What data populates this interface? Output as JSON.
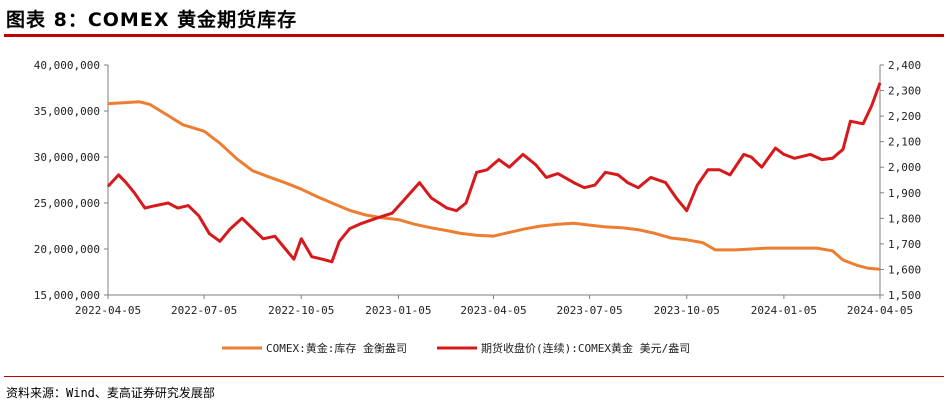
{
  "title": "图表 8：COMEX 黄金期货库存",
  "source": "资料来源：Wind、麦高证券研究发展部",
  "colors": {
    "inventory": "#ed7d31",
    "price": "#d7191c",
    "accent_rule": "#c00000"
  },
  "chart_data": {
    "type": "line",
    "title": "",
    "x_ticks": [
      "2022-04-05",
      "2022-07-05",
      "2022-10-05",
      "2023-01-05",
      "2023-04-05",
      "2023-07-05",
      "2023-10-05",
      "2024-01-05",
      "2024-04-05"
    ],
    "y_left": {
      "ticks": [
        "15,000,000",
        "20,000,000",
        "25,000,000",
        "30,000,000",
        "35,000,000",
        "40,000,000"
      ],
      "min": 15000000,
      "max": 40000000
    },
    "y_right": {
      "ticks": [
        "1,500",
        "1,600",
        "1,700",
        "1,800",
        "1,900",
        "2,000",
        "2,100",
        "2,200",
        "2,300",
        "2,400"
      ],
      "min": 1500,
      "max": 2400
    },
    "grid": false,
    "legend_position": "bottom",
    "series": [
      {
        "name": "COMEX:黄金:库存 金衡盎司",
        "axis": "left",
        "points": [
          [
            "2022-04-05",
            35800000
          ],
          [
            "2022-04-20",
            35900000
          ],
          [
            "2022-05-05",
            36000000
          ],
          [
            "2022-05-15",
            35700000
          ],
          [
            "2022-06-01",
            34500000
          ],
          [
            "2022-06-15",
            33500000
          ],
          [
            "2022-07-05",
            32800000
          ],
          [
            "2022-07-20",
            31500000
          ],
          [
            "2022-08-05",
            29800000
          ],
          [
            "2022-08-20",
            28500000
          ],
          [
            "2022-09-05",
            27800000
          ],
          [
            "2022-09-20",
            27200000
          ],
          [
            "2022-10-05",
            26500000
          ],
          [
            "2022-10-20",
            25700000
          ],
          [
            "2022-11-05",
            24900000
          ],
          [
            "2022-11-20",
            24200000
          ],
          [
            "2022-12-05",
            23700000
          ],
          [
            "2022-12-20",
            23400000
          ],
          [
            "2023-01-05",
            23200000
          ],
          [
            "2023-01-20",
            22700000
          ],
          [
            "2023-02-05",
            22300000
          ],
          [
            "2023-02-20",
            22000000
          ],
          [
            "2023-03-05",
            21700000
          ],
          [
            "2023-03-20",
            21500000
          ],
          [
            "2023-04-05",
            21400000
          ],
          [
            "2023-04-20",
            21800000
          ],
          [
            "2023-05-05",
            22200000
          ],
          [
            "2023-05-20",
            22500000
          ],
          [
            "2023-06-05",
            22700000
          ],
          [
            "2023-06-20",
            22800000
          ],
          [
            "2023-07-05",
            22600000
          ],
          [
            "2023-07-20",
            22400000
          ],
          [
            "2023-08-05",
            22300000
          ],
          [
            "2023-08-20",
            22100000
          ],
          [
            "2023-09-05",
            21700000
          ],
          [
            "2023-09-20",
            21200000
          ],
          [
            "2023-10-05",
            21000000
          ],
          [
            "2023-10-20",
            20700000
          ],
          [
            "2023-11-01",
            19900000
          ],
          [
            "2023-11-20",
            19900000
          ],
          [
            "2023-12-05",
            20000000
          ],
          [
            "2023-12-20",
            20100000
          ],
          [
            "2024-01-05",
            20100000
          ],
          [
            "2024-01-20",
            20100000
          ],
          [
            "2024-02-05",
            20100000
          ],
          [
            "2024-02-20",
            19800000
          ],
          [
            "2024-03-01",
            18800000
          ],
          [
            "2024-03-15",
            18200000
          ],
          [
            "2024-03-25",
            17900000
          ],
          [
            "2024-04-05",
            17800000
          ]
        ]
      },
      {
        "name": "期货收盘价(连续):COMEX黄金 美元/盎司",
        "axis": "right",
        "points": [
          [
            "2022-04-05",
            1925
          ],
          [
            "2022-04-15",
            1970
          ],
          [
            "2022-04-22",
            1940
          ],
          [
            "2022-04-30",
            1900
          ],
          [
            "2022-05-10",
            1840
          ],
          [
            "2022-05-20",
            1850
          ],
          [
            "2022-06-01",
            1860
          ],
          [
            "2022-06-10",
            1840
          ],
          [
            "2022-06-20",
            1850
          ],
          [
            "2022-06-30",
            1810
          ],
          [
            "2022-07-10",
            1740
          ],
          [
            "2022-07-20",
            1710
          ],
          [
            "2022-07-30",
            1760
          ],
          [
            "2022-08-10",
            1800
          ],
          [
            "2022-08-20",
            1760
          ],
          [
            "2022-08-30",
            1720
          ],
          [
            "2022-09-10",
            1730
          ],
          [
            "2022-09-20",
            1680
          ],
          [
            "2022-09-28",
            1640
          ],
          [
            "2022-10-05",
            1720
          ],
          [
            "2022-10-15",
            1650
          ],
          [
            "2022-10-25",
            1640
          ],
          [
            "2022-11-03",
            1630
          ],
          [
            "2022-11-10",
            1710
          ],
          [
            "2022-11-20",
            1760
          ],
          [
            "2022-12-01",
            1780
          ],
          [
            "2022-12-15",
            1800
          ],
          [
            "2022-12-30",
            1820
          ],
          [
            "2023-01-10",
            1870
          ],
          [
            "2023-01-25",
            1940
          ],
          [
            "2023-02-05",
            1880
          ],
          [
            "2023-02-20",
            1840
          ],
          [
            "2023-03-01",
            1830
          ],
          [
            "2023-03-10",
            1860
          ],
          [
            "2023-03-20",
            1980
          ],
          [
            "2023-03-30",
            1990
          ],
          [
            "2023-04-10",
            2030
          ],
          [
            "2023-04-20",
            2000
          ],
          [
            "2023-05-03",
            2050
          ],
          [
            "2023-05-15",
            2010
          ],
          [
            "2023-05-25",
            1960
          ],
          [
            "2023-06-05",
            1975
          ],
          [
            "2023-06-20",
            1940
          ],
          [
            "2023-06-30",
            1920
          ],
          [
            "2023-07-10",
            1930
          ],
          [
            "2023-07-20",
            1980
          ],
          [
            "2023-08-01",
            1970
          ],
          [
            "2023-08-10",
            1940
          ],
          [
            "2023-08-20",
            1920
          ],
          [
            "2023-09-01",
            1960
          ],
          [
            "2023-09-15",
            1940
          ],
          [
            "2023-09-25",
            1880
          ],
          [
            "2023-10-05",
            1830
          ],
          [
            "2023-10-15",
            1930
          ],
          [
            "2023-10-25",
            1990
          ],
          [
            "2023-11-05",
            1990
          ],
          [
            "2023-11-15",
            1970
          ],
          [
            "2023-11-28",
            2050
          ],
          [
            "2023-12-05",
            2040
          ],
          [
            "2023-12-15",
            2000
          ],
          [
            "2023-12-28",
            2075
          ],
          [
            "2024-01-05",
            2050
          ],
          [
            "2024-01-15",
            2035
          ],
          [
            "2024-01-30",
            2050
          ],
          [
            "2024-02-10",
            2030
          ],
          [
            "2024-02-20",
            2035
          ],
          [
            "2024-03-01",
            2070
          ],
          [
            "2024-03-08",
            2180
          ],
          [
            "2024-03-20",
            2170
          ],
          [
            "2024-03-28",
            2240
          ],
          [
            "2024-04-05",
            2330
          ]
        ]
      }
    ]
  }
}
